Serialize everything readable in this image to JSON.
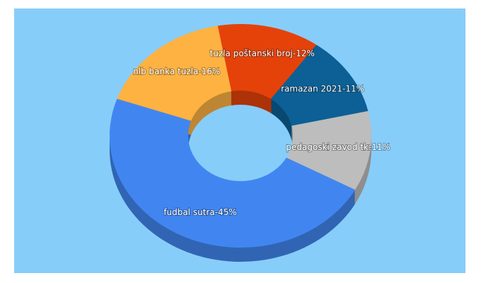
{
  "chart_data": {
    "type": "pie",
    "values": [
      12,
      11,
      11,
      45,
      16
    ],
    "value_labels": [
      "tuzla poštanski broj-12%",
      "ramazan 2021-11%",
      "pedagoski zavod tk-11%",
      "fudbal sutra-45%",
      "nlb banka tuzla-16%"
    ],
    "colors": [
      "#e5420a",
      "#0c6096",
      "#bdbdbd",
      "#4186f0",
      "#fdb242"
    ],
    "donut": true
  }
}
